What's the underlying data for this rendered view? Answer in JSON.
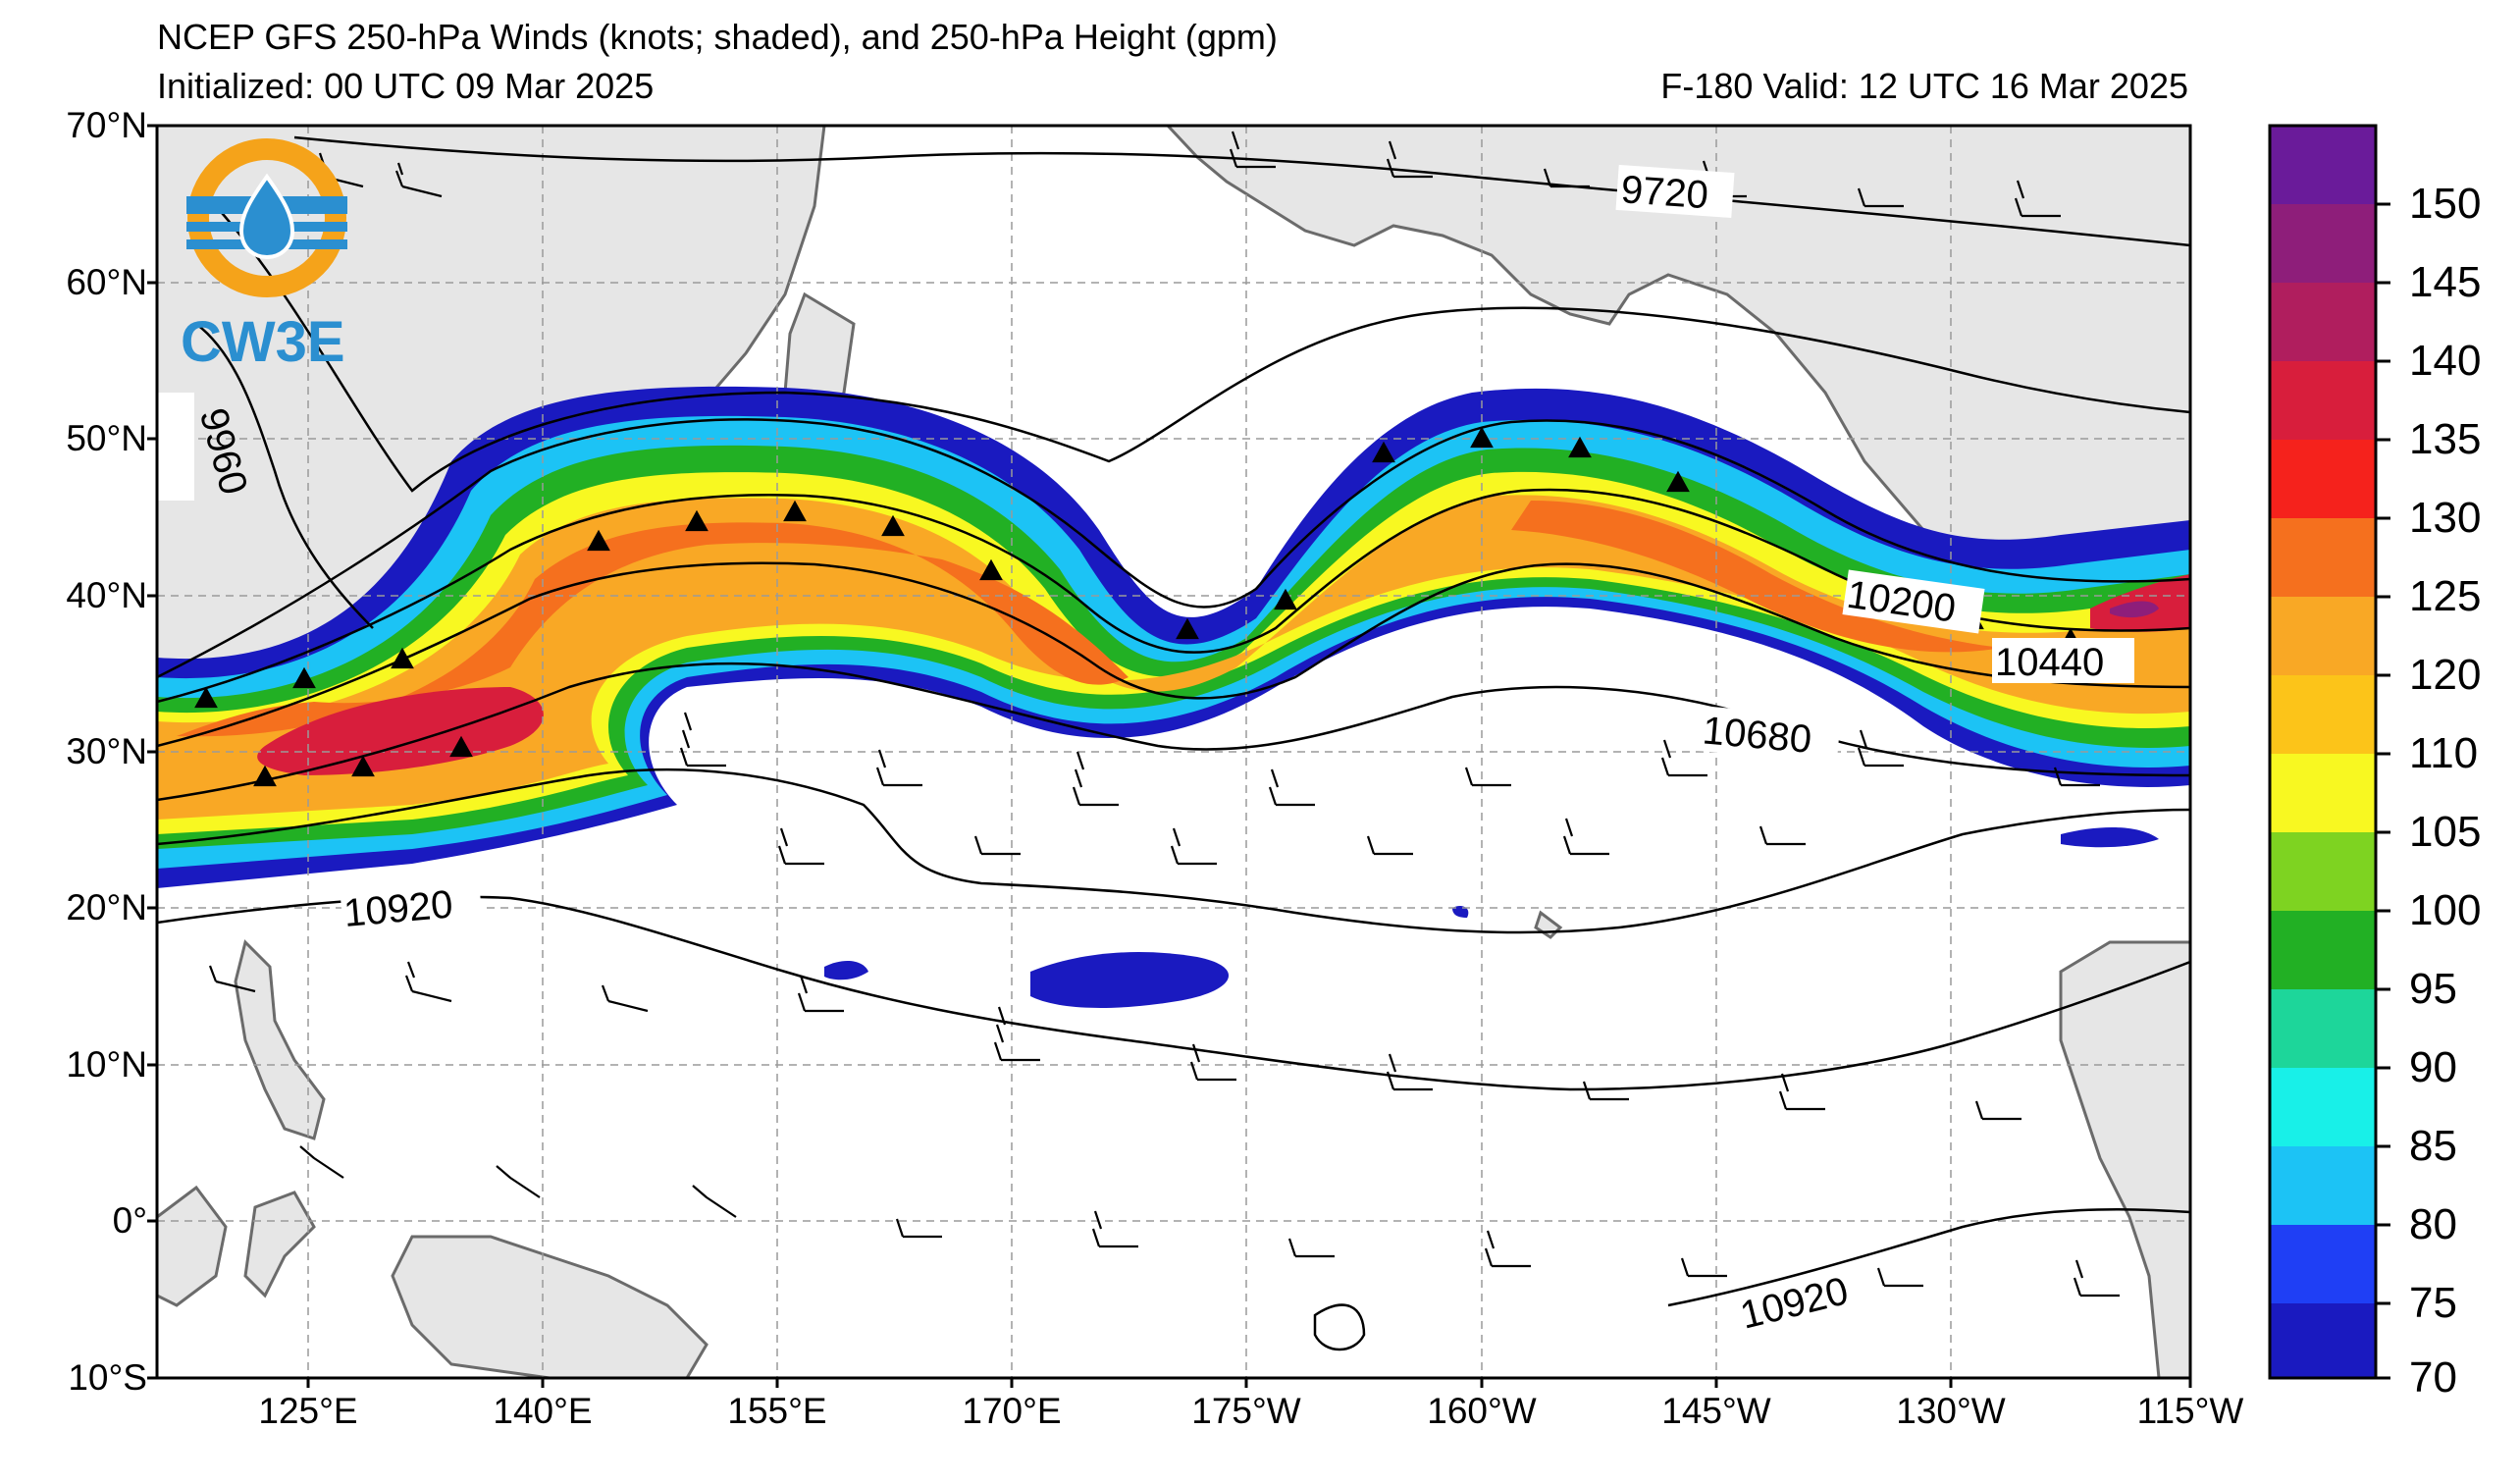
{
  "header": {
    "title": "NCEP GFS 250-hPa Winds (knots; shaded), and 250-hPa Height (gpm)",
    "initialized": "Initialized: 00 UTC 09 Mar 2025",
    "valid": "F-180  Valid: 12 UTC 16 Mar 2025"
  },
  "logo": {
    "text": "CW3E",
    "colors": {
      "ring": "#f5a31a",
      "blue": "#2b8fd0"
    }
  },
  "axes": {
    "lat_labels": [
      "70°N",
      "60°N",
      "50°N",
      "40°N",
      "30°N",
      "20°N",
      "10°N",
      "0°",
      "10°S"
    ],
    "lon_labels": [
      "125°E",
      "140°E",
      "155°E",
      "170°E",
      "175°W",
      "160°W",
      "145°W",
      "130°W",
      "115°W"
    ]
  },
  "contour_labels": [
    "9720",
    "9960",
    "10200",
    "10440",
    "10680",
    "10920",
    "10920"
  ],
  "colorbar": {
    "labels": [
      "150",
      "145",
      "140",
      "135",
      "130",
      "125",
      "120",
      "110",
      "105",
      "100",
      "95",
      "90",
      "85",
      "80",
      "75",
      "70"
    ],
    "colors": [
      "#6a1b9a",
      "#8e1e7a",
      "#b01e5e",
      "#d81e3c",
      "#f5221c",
      "#f5701e",
      "#f9a825",
      "#fcc419",
      "#f8f821",
      "#7ed321",
      "#22b024",
      "#1dd69a",
      "#18f0e8",
      "#1cc3f5",
      "#1f3ff5",
      "#1a1ac0"
    ]
  }
}
